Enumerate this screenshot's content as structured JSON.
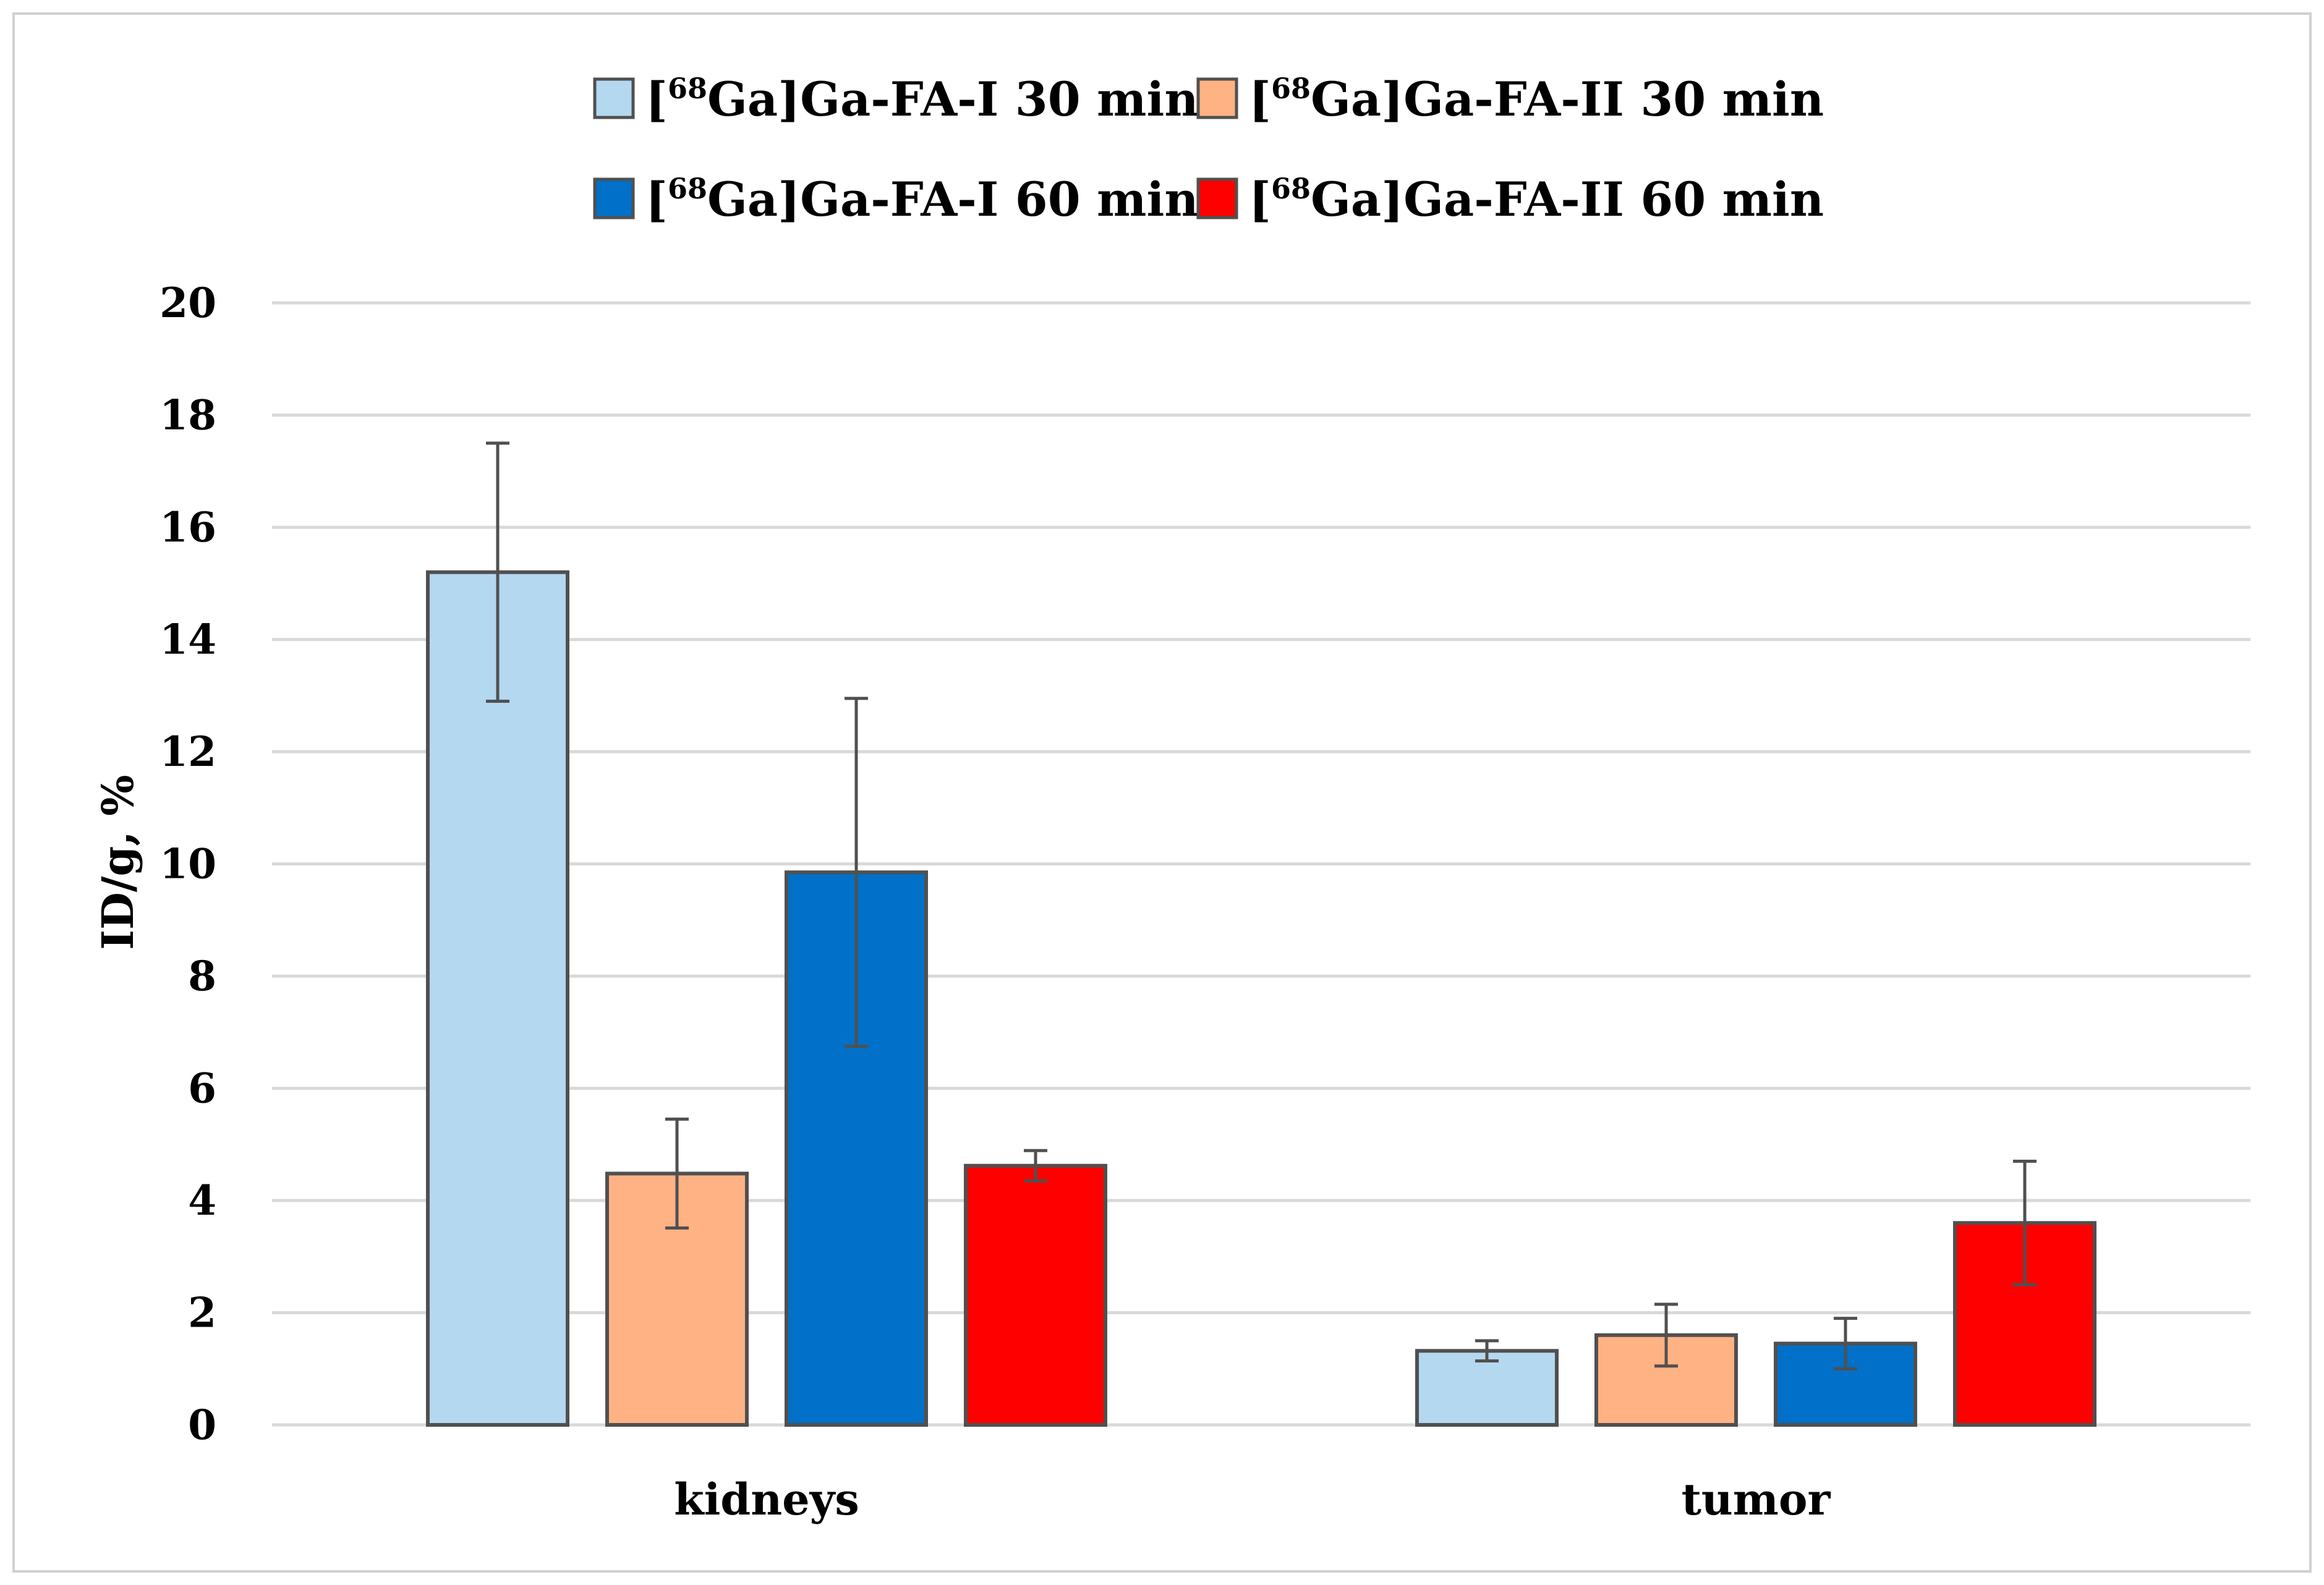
{
  "chart_data": {
    "type": "bar",
    "title": "",
    "xlabel": "",
    "ylabel": "ID/g, %",
    "ylim": [
      0,
      20
    ],
    "yticks": [
      0,
      2,
      4,
      6,
      8,
      10,
      12,
      14,
      16,
      18,
      20
    ],
    "grid": true,
    "legend_position": "top-center",
    "categories": [
      "kidneys",
      "tumor"
    ],
    "series": [
      {
        "name": "[68Ga]Ga-FA-I 30 min",
        "iso": "68",
        "pre": "[",
        "post": "Ga]Ga-FA-I 30 min",
        "color": "#B4D8F0",
        "values": [
          15.2,
          1.32
        ],
        "errors": [
          2.3,
          0.18
        ]
      },
      {
        "name": "[68Ga]Ga-FA-II 30 min",
        "iso": "68",
        "pre": "[",
        "post": "Ga]Ga-FA-II 30 min",
        "color": "#FFB283",
        "values": [
          4.48,
          1.6
        ],
        "errors": [
          0.97,
          0.55
        ]
      },
      {
        "name": "[68Ga]Ga-FA-I 60 min",
        "iso": "68",
        "pre": "[",
        "post": "Ga]Ga-FA-I 60 min",
        "color": "#0070C8",
        "values": [
          9.85,
          1.45
        ],
        "errors": [
          3.1,
          0.45
        ]
      },
      {
        "name": "[68Ga]Ga-FA-II 60 min",
        "iso": "68",
        "pre": "[",
        "post": "Ga]Ga-FA-II 60 min",
        "color": "#FF0000",
        "values": [
          4.62,
          3.6
        ],
        "errors": [
          0.27,
          1.1
        ]
      }
    ]
  },
  "colors": {
    "bar_border": "#505050",
    "error_bar": "#505050",
    "gridline": "#D9D9D9",
    "frame": "#D0D0D0"
  }
}
